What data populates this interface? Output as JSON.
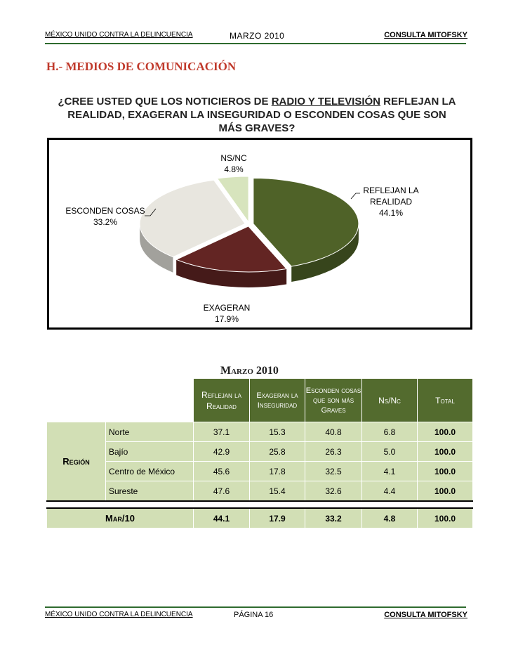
{
  "header": {
    "left": "MÉXICO UNIDO CONTRA LA DELINCUENCIA",
    "center": "MARZO 2010",
    "right": "CONSULTA MITOFSKY"
  },
  "section_title": "H.- MEDIOS DE COMUNICACIÓN",
  "question": {
    "part1": "¿CREE USTED QUE LOS NOTICIEROS DE ",
    "underlined": "RADIO Y TELEVISIÓN",
    "part2": " REFLEJAN LA REALIDAD, EXAGERAN LA INSEGURIDAD O ESCONDEN COSAS QUE SON MÁS GRAVES?"
  },
  "chart_data": {
    "type": "pie",
    "slices": [
      {
        "label_lines": [
          "REFLEJAN LA",
          "REALIDAD"
        ],
        "value_label": "44.1%",
        "value": 44.1,
        "color": "#4f6228"
      },
      {
        "label_lines": [
          "EXAGERAN"
        ],
        "value_label": "17.9%",
        "value": 17.9,
        "color": "#632523"
      },
      {
        "label_lines": [
          "ESCONDEN COSAS"
        ],
        "value_label": "33.2%",
        "value": 33.2,
        "color": "#e8e6df"
      },
      {
        "label_lines": [
          "NS/NC"
        ],
        "value_label": "4.8%",
        "value": 4.8,
        "color": "#d7e4bd"
      }
    ]
  },
  "table": {
    "caption": "Marzo 2010",
    "headers": [
      "Reflejan la Realidad",
      "Exageran la Inseguridad",
      "Esconden cosas que son más Graves",
      "Ns/Nc",
      "Total"
    ],
    "region_label": "Región",
    "rows": [
      {
        "name": "Norte",
        "values": [
          "37.1",
          "15.3",
          "40.8",
          "6.8",
          "100.0"
        ]
      },
      {
        "name": "Bajío",
        "values": [
          "42.9",
          "25.8",
          "26.3",
          "5.0",
          "100.0"
        ]
      },
      {
        "name": "Centro de México",
        "values": [
          "45.6",
          "17.8",
          "32.5",
          "4.1",
          "100.0"
        ]
      },
      {
        "name": "Sureste",
        "values": [
          "47.6",
          "15.4",
          "32.6",
          "4.4",
          "100.0"
        ]
      }
    ],
    "total": {
      "name": "Mar/10",
      "values": [
        "44.1",
        "17.9",
        "33.2",
        "4.8",
        "100.0"
      ]
    }
  },
  "footer": {
    "left": "MÉXICO UNIDO CONTRA LA DELINCUENCIA",
    "center": "PÁGINA 16",
    "right": "CONSULTA MITOFSKY"
  }
}
